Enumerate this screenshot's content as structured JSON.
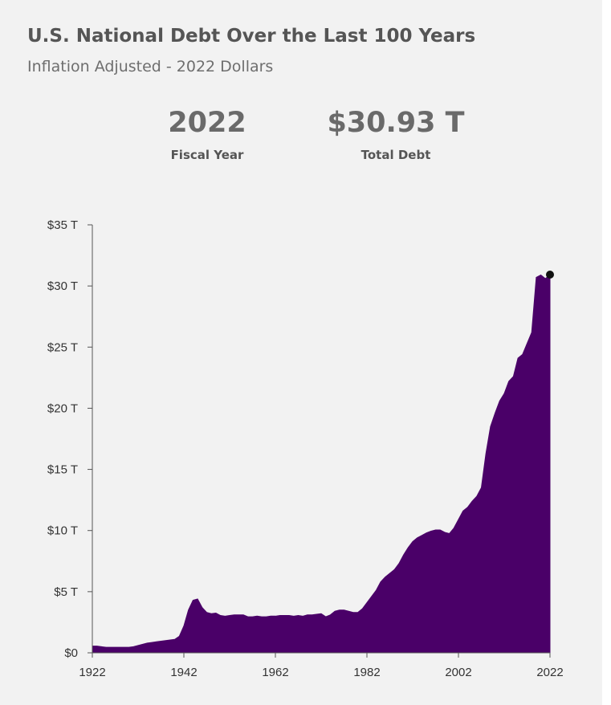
{
  "header": {
    "title": "U.S. National Debt Over the Last 100 Years",
    "subtitle": "Inflation Adjusted - 2022 Dollars"
  },
  "stats": {
    "year_value": "2022",
    "year_label": "Fiscal Year",
    "debt_value": "$30.93 T",
    "debt_label": "Total Debt"
  },
  "colors": {
    "area": "#4a0068",
    "marker": "#111111",
    "axis": "#555555",
    "background": "#f2f2f2"
  },
  "chart_data": {
    "type": "area",
    "title": "U.S. National Debt Over the Last 100 Years",
    "subtitle": "Inflation Adjusted - 2022 Dollars",
    "xlabel": "",
    "ylabel": "",
    "xlim": [
      1922,
      2022
    ],
    "ylim": [
      0,
      35
    ],
    "x_ticks": [
      1922,
      1942,
      1962,
      1982,
      2002,
      2022
    ],
    "x_tick_labels": [
      "1922",
      "1942",
      "1962",
      "1982",
      "2002",
      "2022"
    ],
    "y_ticks": [
      0,
      5,
      10,
      15,
      20,
      25,
      30,
      35
    ],
    "y_tick_labels": [
      "$0",
      "$5 T",
      "$10 T",
      "$15 T",
      "$20 T",
      "$25 T",
      "$30 T",
      "$35 T"
    ],
    "grid": false,
    "highlight_point": {
      "x": 2022,
      "y": 30.93
    },
    "series": [
      {
        "x": [
          1922,
          1923,
          1924,
          1925,
          1926,
          1927,
          1928,
          1929,
          1930,
          1931,
          1932,
          1933,
          1934,
          1935,
          1936,
          1937,
          1938,
          1939,
          1940,
          1941,
          1942,
          1943,
          1944,
          1945,
          1946,
          1947,
          1948,
          1949,
          1950,
          1951,
          1952,
          1953,
          1954,
          1955,
          1956,
          1957,
          1958,
          1959,
          1960,
          1961,
          1962,
          1963,
          1964,
          1965,
          1966,
          1967,
          1968,
          1969,
          1970,
          1971,
          1972,
          1973,
          1974,
          1975,
          1976,
          1977,
          1978,
          1979,
          1980,
          1981,
          1982,
          1983,
          1984,
          1985,
          1986,
          1987,
          1988,
          1989,
          1990,
          1991,
          1992,
          1993,
          1994,
          1995,
          1996,
          1997,
          1998,
          1999,
          2000,
          2001,
          2002,
          2003,
          2004,
          2005,
          2006,
          2007,
          2008,
          2009,
          2010,
          2011,
          2012,
          2013,
          2014,
          2015,
          2016,
          2017,
          2018,
          2019,
          2020,
          2021,
          2022
        ],
        "values": [
          0.55,
          0.55,
          0.5,
          0.45,
          0.45,
          0.45,
          0.45,
          0.45,
          0.45,
          0.5,
          0.6,
          0.7,
          0.8,
          0.85,
          0.9,
          0.95,
          1.0,
          1.05,
          1.1,
          1.35,
          2.2,
          3.5,
          4.3,
          4.4,
          3.7,
          3.3,
          3.2,
          3.25,
          3.05,
          3.0,
          3.05,
          3.1,
          3.1,
          3.1,
          2.95,
          2.95,
          3.0,
          2.95,
          2.95,
          3.0,
          3.0,
          3.05,
          3.05,
          3.05,
          3.0,
          3.05,
          3.0,
          3.1,
          3.1,
          3.15,
          3.2,
          2.95,
          3.1,
          3.4,
          3.5,
          3.5,
          3.4,
          3.3,
          3.3,
          3.6,
          4.1,
          4.6,
          5.1,
          5.8,
          6.2,
          6.5,
          6.8,
          7.3,
          8.0,
          8.6,
          9.1,
          9.4,
          9.6,
          9.8,
          9.95,
          10.05,
          10.05,
          9.85,
          9.75,
          10.2,
          10.9,
          11.6,
          11.9,
          12.4,
          12.8,
          13.5,
          16.3,
          18.5,
          19.6,
          20.6,
          21.2,
          22.2,
          22.6,
          24.1,
          24.4,
          25.3,
          26.2,
          30.7,
          30.9,
          30.6,
          30.93
        ]
      }
    ]
  }
}
